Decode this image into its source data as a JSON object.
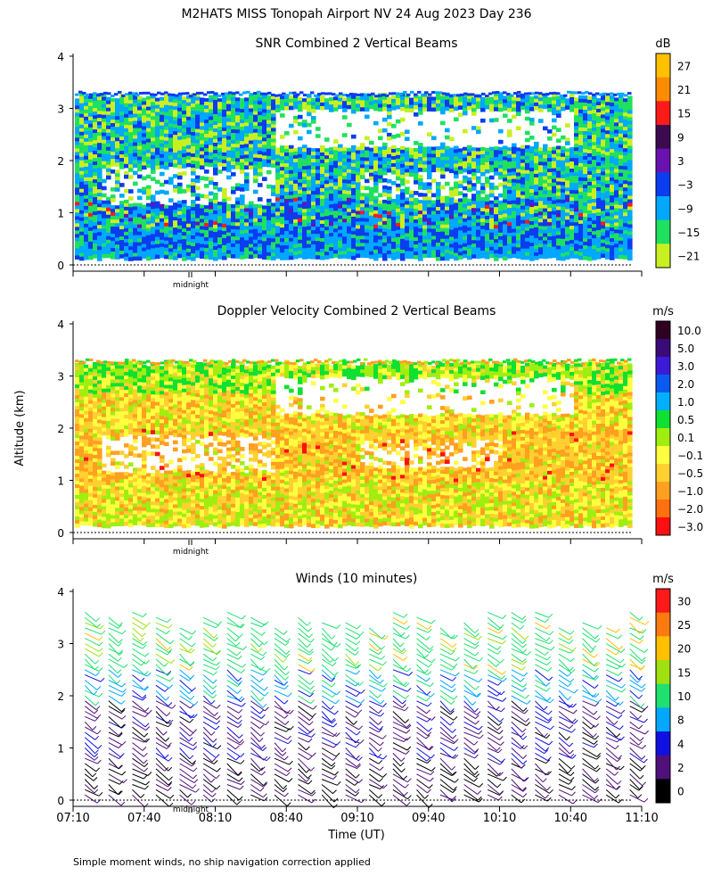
{
  "header": {
    "title": "M2HATS MISS Tonopah Airport NV  24 Aug 2023 Day 236"
  },
  "panels": [
    {
      "title": "SNR Combined 2 Vertical Beams",
      "unit": "dB",
      "colorbar_labels": [
        "27",
        "21",
        "15",
        "9",
        "3",
        "−3",
        "−9",
        "−15",
        "−21"
      ],
      "colorbar_colors": [
        "#ffc000",
        "#ff8c00",
        "#ff1a1a",
        "#3c0a50",
        "#6a12b0",
        "#0a3cf0",
        "#00a8ff",
        "#20e060",
        "#c8f020"
      ],
      "midnight_label": "midnight"
    },
    {
      "title": "Doppler Velocity Combined 2 Vertical Beams",
      "unit": "m/s",
      "colorbar_labels": [
        "10.0",
        "5.0",
        "3.0",
        "2.0",
        "1.0",
        "0.5",
        "0.1",
        "−0.1",
        "−0.5",
        "−1.0",
        "−2.0",
        "−3.0"
      ],
      "colorbar_colors": [
        "#300020",
        "#3a0a78",
        "#3c1ad8",
        "#0a5af0",
        "#00b0ff",
        "#10e030",
        "#a0ee10",
        "#ffff40",
        "#ffd030",
        "#ffa020",
        "#ff7010",
        "#ff1010"
      ],
      "midnight_label": "midnight"
    },
    {
      "title": "Winds (10 minutes)",
      "unit": "m/s",
      "colorbar_labels": [
        "30",
        "25",
        "20",
        "15",
        "10",
        "8",
        "4",
        "2",
        "0"
      ],
      "colorbar_colors": [
        "#ff1a1a",
        "#ff7a10",
        "#ffc000",
        "#a0e010",
        "#20e070",
        "#00a8ff",
        "#1010e0",
        "#50107a",
        "#000000"
      ],
      "midnight_label": "midnight"
    }
  ],
  "axes": {
    "ylabel": "Altitude (km)",
    "yticks": [
      "0",
      "1",
      "2",
      "3",
      "4"
    ],
    "xlabel": "Time (UT)",
    "xticks": [
      "07:10",
      "07:40",
      "08:10",
      "08:40",
      "09:10",
      "09:40",
      "10:10",
      "10:40",
      "11:10"
    ]
  },
  "footer_note": "Simple moment winds, no ship navigation correction applied",
  "chart_data": [
    {
      "type": "heatmap",
      "title": "SNR Combined 2 Vertical Beams",
      "colorbar_unit": "dB",
      "x_range": [
        "07:10",
        "11:10"
      ],
      "ylim": [
        0,
        4
      ],
      "ylabel": "Altitude (km)",
      "colorbar_levels": [
        -21,
        -15,
        -9,
        -3,
        3,
        9,
        15,
        21,
        27
      ],
      "data_top_km": 3.25
    },
    {
      "type": "heatmap",
      "title": "Doppler Velocity Combined 2 Vertical Beams",
      "colorbar_unit": "m/s",
      "x_range": [
        "07:10",
        "11:10"
      ],
      "ylim": [
        0,
        4
      ],
      "ylabel": "Altitude (km)",
      "colorbar_levels": [
        -3.0,
        -2.0,
        -1.0,
        -0.5,
        -0.1,
        0.1,
        0.5,
        1.0,
        2.0,
        3.0,
        5.0,
        10.0
      ],
      "data_top_km": 3.25
    },
    {
      "type": "scatter",
      "title": "Winds (10 minutes)",
      "colorbar_unit": "m/s",
      "x_range": [
        "07:10",
        "11:10"
      ],
      "ylim": [
        0,
        4
      ],
      "xlabel": "Time (UT)",
      "ylabel": "Altitude (km)",
      "colorbar_levels": [
        0,
        2,
        4,
        8,
        10,
        15,
        20,
        25,
        30
      ],
      "profile_times": [
        "07:15",
        "07:25",
        "07:35",
        "07:45",
        "07:55",
        "08:05",
        "08:15",
        "08:25",
        "08:35",
        "08:45",
        "08:55",
        "09:05",
        "09:15",
        "09:25",
        "09:35",
        "09:45",
        "09:55",
        "10:05",
        "10:15",
        "10:25",
        "10:35",
        "10:45",
        "10:55",
        "11:05"
      ]
    }
  ]
}
